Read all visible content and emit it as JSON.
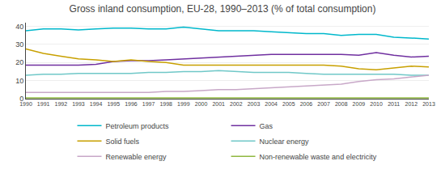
{
  "chart_data": {
    "type": "line",
    "title": "Gross inland consumption, EU-28, 1990–2013 (% of total consumption)",
    "x": [
      1990,
      1991,
      1992,
      1993,
      1994,
      1995,
      1996,
      1997,
      1998,
      1999,
      2000,
      2001,
      2002,
      2003,
      2004,
      2005,
      2006,
      2007,
      2008,
      2009,
      2010,
      2011,
      2012,
      2013
    ],
    "series": [
      {
        "name": "Petroleum products",
        "color": "#00b8cc",
        "values": [
          37.5,
          38.5,
          38.5,
          38.0,
          38.5,
          39.0,
          39.0,
          38.5,
          38.5,
          39.5,
          38.5,
          37.5,
          37.5,
          37.5,
          37.0,
          36.5,
          36.0,
          36.0,
          35.0,
          35.5,
          35.5,
          34.0,
          33.5,
          33.0
        ]
      },
      {
        "name": "Gas",
        "color": "#7030a0",
        "values": [
          18.5,
          18.5,
          18.5,
          18.5,
          19.0,
          20.5,
          21.0,
          21.0,
          21.5,
          22.0,
          22.5,
          23.0,
          23.5,
          24.0,
          24.5,
          24.5,
          24.5,
          24.5,
          24.5,
          24.0,
          25.5,
          24.0,
          23.0,
          23.5
        ]
      },
      {
        "name": "Solid fuels",
        "color": "#c8a000",
        "values": [
          27.5,
          25.0,
          23.5,
          22.0,
          21.5,
          20.5,
          21.5,
          20.5,
          20.0,
          18.5,
          18.5,
          18.5,
          18.5,
          18.5,
          18.5,
          18.5,
          18.5,
          18.5,
          18.0,
          16.5,
          16.0,
          17.0,
          18.0,
          17.5
        ]
      },
      {
        "name": "Nuclear energy",
        "color": "#70c8c8",
        "values": [
          13.0,
          13.5,
          13.5,
          14.0,
          14.0,
          14.0,
          14.0,
          14.5,
          14.5,
          15.0,
          15.0,
          15.5,
          15.0,
          14.5,
          14.5,
          14.5,
          14.0,
          13.5,
          13.5,
          13.5,
          13.5,
          13.5,
          13.0,
          13.0
        ]
      },
      {
        "name": "Renewable energy",
        "color": "#c8a8c8",
        "values": [
          3.5,
          3.5,
          3.5,
          3.5,
          3.5,
          3.5,
          3.5,
          3.5,
          4.0,
          4.0,
          4.5,
          5.0,
          5.0,
          5.5,
          6.0,
          6.5,
          7.0,
          7.5,
          8.0,
          9.5,
          10.5,
          11.0,
          12.0,
          13.0
        ]
      },
      {
        "name": "Non-renewable waste and electricity",
        "color": "#90b840",
        "values": [
          0.5,
          0.5,
          0.5,
          0.5,
          0.5,
          0.5,
          0.5,
          0.5,
          0.5,
          0.5,
          0.5,
          0.5,
          0.5,
          0.5,
          0.5,
          0.5,
          0.5,
          0.5,
          0.5,
          0.5,
          0.5,
          0.5,
          0.5,
          0.5
        ]
      }
    ],
    "xlim": [
      1990,
      2013
    ],
    "xticks": [
      1990,
      1991,
      1992,
      1993,
      1994,
      1995,
      1996,
      1997,
      1998,
      1999,
      2000,
      2001,
      2002,
      2003,
      2004,
      2005,
      2006,
      2007,
      2008,
      2009,
      2010,
      2011,
      2012,
      2013
    ],
    "ylim": [
      0,
      42
    ],
    "yticks": [
      0,
      10,
      20,
      30,
      40
    ],
    "grid": true,
    "legend": "bottom"
  }
}
